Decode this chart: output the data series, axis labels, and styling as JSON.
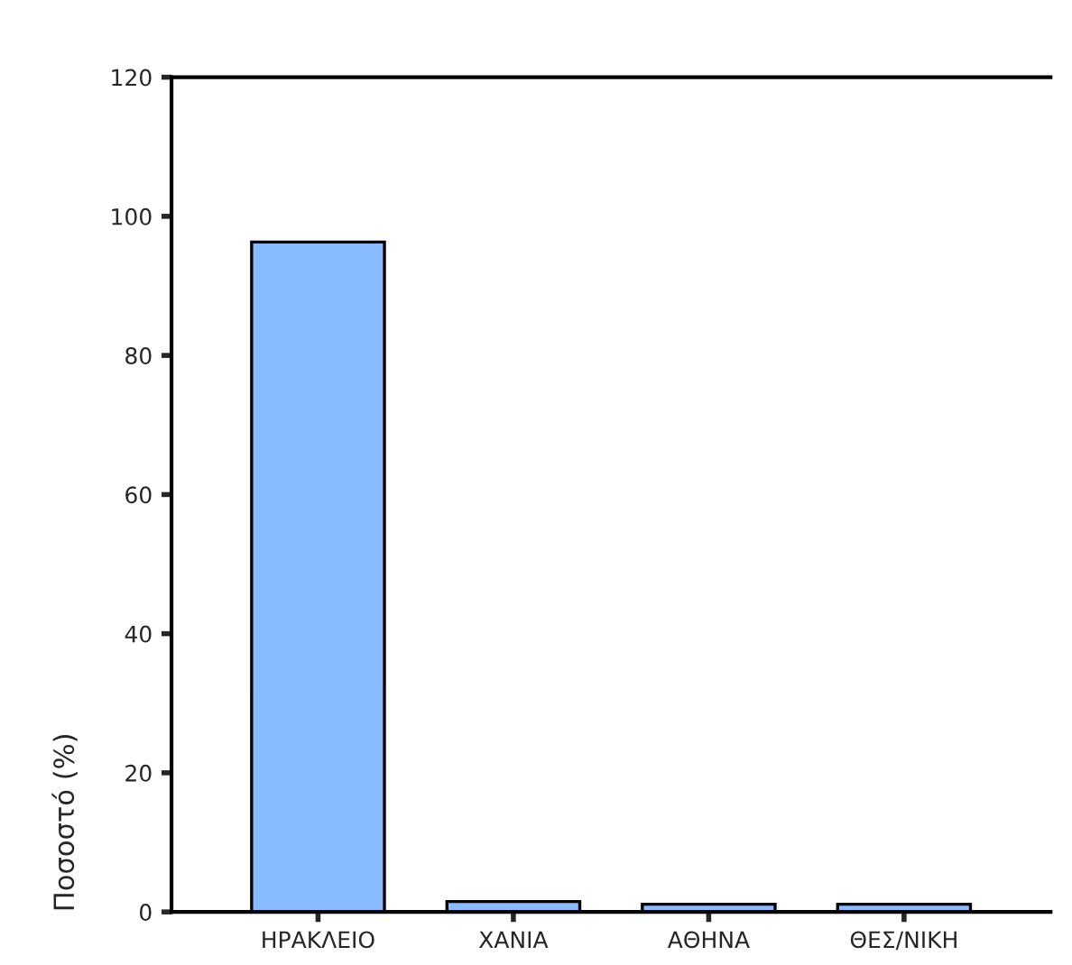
{
  "chart_data": {
    "type": "bar",
    "ylabel": "Ποσοστό (%)",
    "categories": [
      "ΗΡΑΚΛΕΙΟ",
      "ΧΑΝΙΑ",
      "ΑΘΗΝΑ",
      "ΘΕΣ/ΝΙΚΗ"
    ],
    "values": [
      96.3,
      1.5,
      1.1,
      1.1
    ],
    "color": "#88bbff",
    "ylim": [
      0,
      120
    ],
    "yticks": [
      0,
      20,
      40,
      60,
      80,
      100,
      120
    ],
    "grid": false
  }
}
